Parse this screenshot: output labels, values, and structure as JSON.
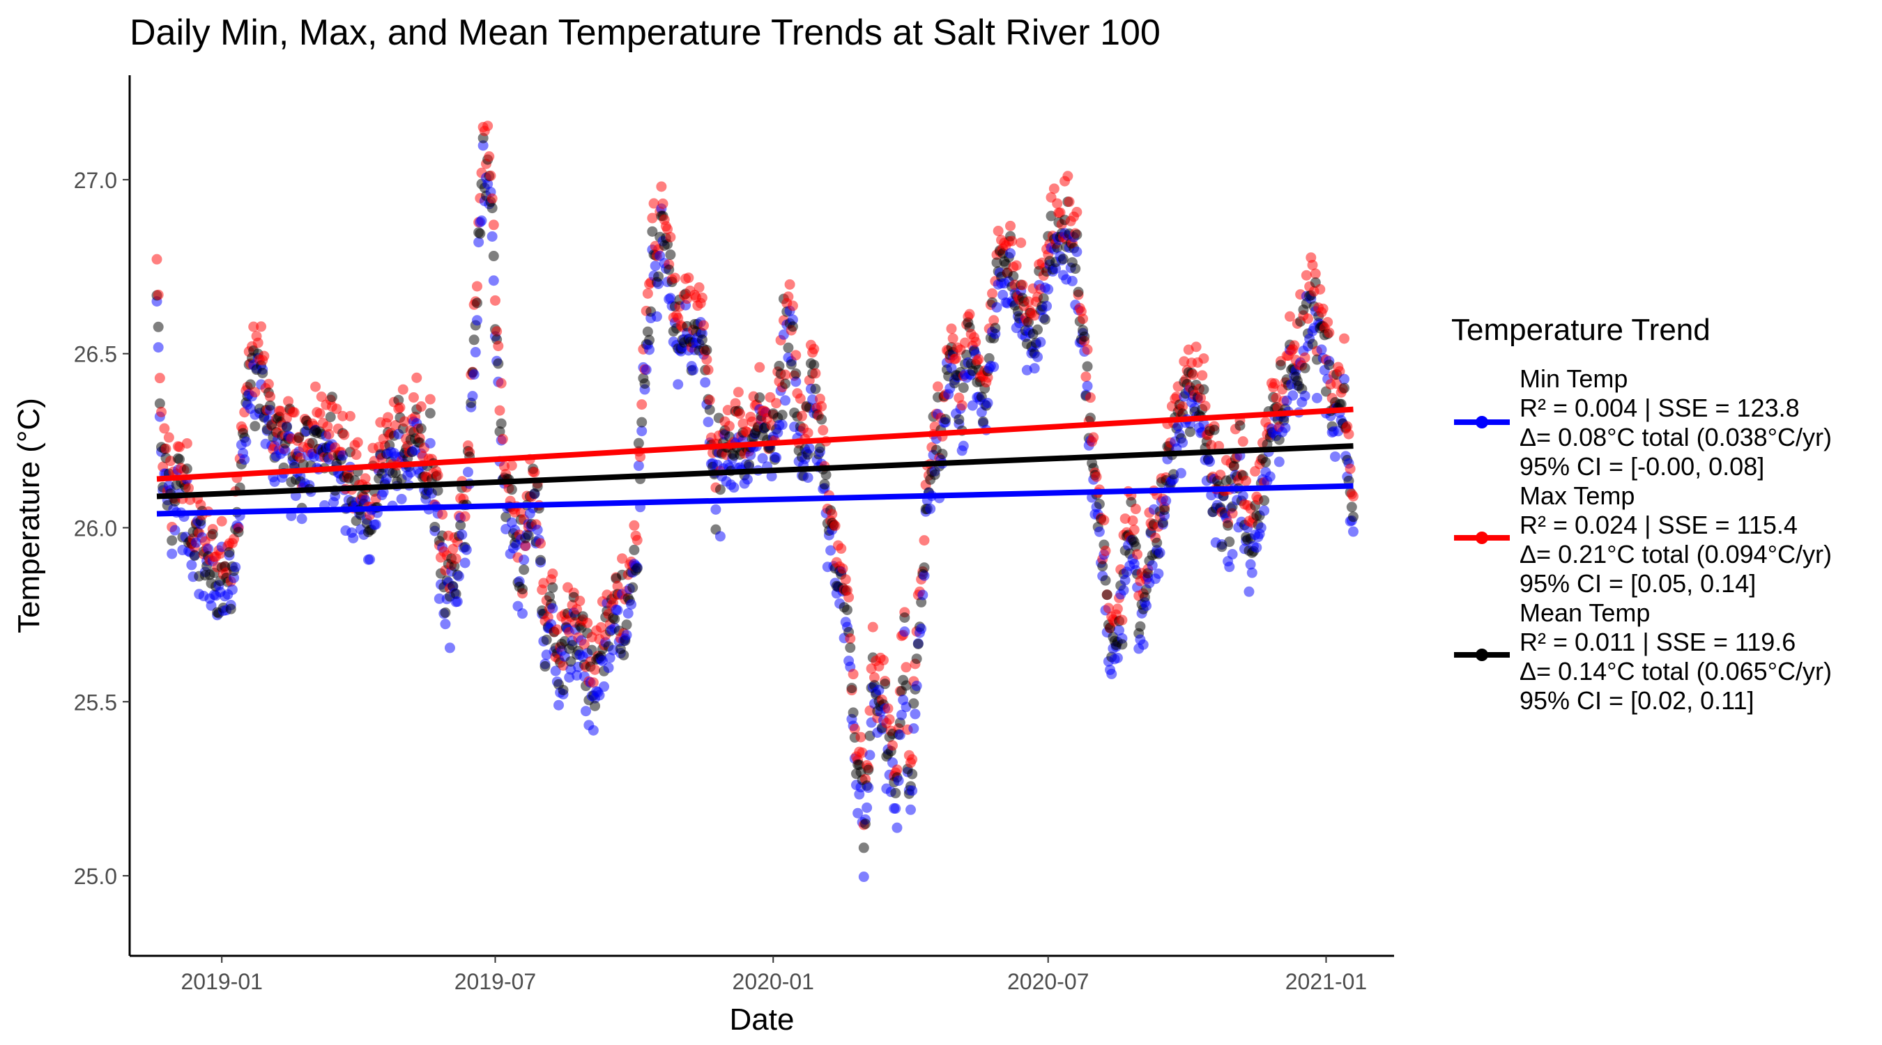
{
  "chart_data": {
    "type": "scatter",
    "title": "Daily Min, Max, and Mean Temperature Trends at Salt River 100",
    "xlabel": "Date",
    "ylabel": "Temperature (°C)",
    "x_range": [
      "2018-11-01",
      "2021-02-15"
    ],
    "ylim": [
      24.77,
      27.3
    ],
    "x_ticks": [
      {
        "date": "2019-01-01",
        "label": "2019-01"
      },
      {
        "date": "2019-07-01",
        "label": "2019-07"
      },
      {
        "date": "2020-01-01",
        "label": "2020-01"
      },
      {
        "date": "2020-07-01",
        "label": "2020-07"
      },
      {
        "date": "2021-01-01",
        "label": "2021-01"
      }
    ],
    "y_ticks": [
      "25.0",
      "25.5",
      "26.0",
      "26.5",
      "27.0"
    ],
    "grid": false,
    "legend": {
      "title": "Temperature Trend",
      "placement": "right",
      "entries": [
        {
          "name": "Min Temp",
          "color": "#0000ff",
          "lines": [
            "R² = 0.004 | SSE = 123.8",
            "Δ= 0.08°C total (0.038°C/yr)",
            "95% CI = [-0.00, 0.08]"
          ]
        },
        {
          "name": "Max Temp",
          "color": "#ff0000",
          "lines": [
            "R² = 0.024 | SSE = 115.4",
            "Δ= 0.21°C total (0.094°C/yr)",
            "95% CI = [0.05, 0.14]"
          ]
        },
        {
          "name": "Mean Temp",
          "color": "#000000",
          "lines": [
            "R² = 0.011 | SSE = 119.6",
            "Δ= 0.14°C total (0.065°C/yr)",
            "95% CI = [0.02, 0.11]"
          ]
        }
      ]
    },
    "trend_lines": [
      {
        "series": "Min Temp",
        "color": "#0000ff",
        "start": {
          "date": "2018-11-19",
          "value": 26.04
        },
        "end": {
          "date": "2021-01-19",
          "value": 26.12
        }
      },
      {
        "series": "Max Temp",
        "color": "#ff0000",
        "start": {
          "date": "2018-11-19",
          "value": 26.14
        },
        "end": {
          "date": "2021-01-19",
          "value": 26.34
        }
      },
      {
        "series": "Mean Temp",
        "color": "#000000",
        "start": {
          "date": "2018-11-19",
          "value": 26.09
        },
        "end": {
          "date": "2021-01-19",
          "value": 26.235
        }
      }
    ],
    "anchors": [
      [
        "2018-11-19",
        26.62
      ],
      [
        "2018-11-23",
        26.2
      ],
      [
        "2018-11-28",
        26.1
      ],
      [
        "2018-12-05",
        26.08
      ],
      [
        "2018-12-12",
        26.0
      ],
      [
        "2018-12-20",
        25.95
      ],
      [
        "2018-12-28",
        25.8
      ],
      [
        "2019-01-06",
        25.9
      ],
      [
        "2019-01-12",
        26.05
      ],
      [
        "2019-01-18",
        26.4
      ],
      [
        "2019-01-25",
        26.45
      ],
      [
        "2019-02-05",
        26.3
      ],
      [
        "2019-02-20",
        26.2
      ],
      [
        "2019-03-05",
        26.25
      ],
      [
        "2019-03-20",
        26.2
      ],
      [
        "2019-04-01",
        26.1
      ],
      [
        "2019-04-10",
        26.0
      ],
      [
        "2019-04-20",
        26.2
      ],
      [
        "2019-05-05",
        26.2
      ],
      [
        "2019-05-15",
        26.25
      ],
      [
        "2019-05-22",
        26.1
      ],
      [
        "2019-05-28",
        25.85
      ],
      [
        "2019-06-05",
        25.9
      ],
      [
        "2019-06-12",
        26.05
      ],
      [
        "2019-06-18",
        26.6
      ],
      [
        "2019-06-22",
        27.0
      ],
      [
        "2019-06-27",
        27.05
      ],
      [
        "2019-07-02",
        26.5
      ],
      [
        "2019-07-06",
        26.2
      ],
      [
        "2019-07-12",
        26.05
      ],
      [
        "2019-07-20",
        25.9
      ],
      [
        "2019-07-28",
        26.05
      ],
      [
        "2019-08-03",
        25.75
      ],
      [
        "2019-08-12",
        25.65
      ],
      [
        "2019-08-22",
        25.75
      ],
      [
        "2019-09-01",
        25.55
      ],
      [
        "2019-09-10",
        25.65
      ],
      [
        "2019-09-18",
        25.75
      ],
      [
        "2019-09-26",
        25.75
      ],
      [
        "2019-10-03",
        26.0
      ],
      [
        "2019-10-08",
        26.5
      ],
      [
        "2019-10-14",
        26.75
      ],
      [
        "2019-10-20",
        26.85
      ],
      [
        "2019-10-27",
        26.65
      ],
      [
        "2019-11-05",
        26.55
      ],
      [
        "2019-11-15",
        26.55
      ],
      [
        "2019-11-22",
        26.15
      ],
      [
        "2019-12-01",
        26.25
      ],
      [
        "2019-12-10",
        26.2
      ],
      [
        "2019-12-20",
        26.3
      ],
      [
        "2019-12-28",
        26.25
      ],
      [
        "2020-01-05",
        26.4
      ],
      [
        "2020-01-12",
        26.6
      ],
      [
        "2020-01-20",
        26.25
      ],
      [
        "2020-01-28",
        26.4
      ],
      [
        "2020-02-05",
        26.1
      ],
      [
        "2020-02-12",
        25.95
      ],
      [
        "2020-02-20",
        25.7
      ],
      [
        "2020-02-25",
        25.3
      ],
      [
        "2020-03-01",
        25.15
      ],
      [
        "2020-03-08",
        25.55
      ],
      [
        "2020-03-15",
        25.45
      ],
      [
        "2020-03-22",
        25.25
      ],
      [
        "2020-03-28",
        25.7
      ],
      [
        "2020-04-01",
        25.15
      ],
      [
        "2020-04-05",
        25.6
      ],
      [
        "2020-04-12",
        26.1
      ],
      [
        "2020-04-20",
        26.3
      ],
      [
        "2020-04-28",
        26.45
      ],
      [
        "2020-05-05",
        26.4
      ],
      [
        "2020-05-12",
        26.5
      ],
      [
        "2020-05-20",
        26.3
      ],
      [
        "2020-05-28",
        26.7
      ],
      [
        "2020-06-05",
        26.75
      ],
      [
        "2020-06-12",
        26.7
      ],
      [
        "2020-06-20",
        26.5
      ],
      [
        "2020-06-28",
        26.7
      ],
      [
        "2020-07-05",
        26.85
      ],
      [
        "2020-07-12",
        26.85
      ],
      [
        "2020-07-20",
        26.75
      ],
      [
        "2020-07-28",
        26.3
      ],
      [
        "2020-08-05",
        26.0
      ],
      [
        "2020-08-12",
        25.65
      ],
      [
        "2020-08-18",
        25.75
      ],
      [
        "2020-08-25",
        26.0
      ],
      [
        "2020-09-02",
        25.75
      ],
      [
        "2020-09-10",
        26.0
      ],
      [
        "2020-09-18",
        26.15
      ],
      [
        "2020-09-25",
        26.3
      ],
      [
        "2020-10-03",
        26.4
      ],
      [
        "2020-10-12",
        26.35
      ],
      [
        "2020-10-20",
        26.1
      ],
      [
        "2020-10-28",
        26.05
      ],
      [
        "2020-11-05",
        26.2
      ],
      [
        "2020-11-12",
        25.9
      ],
      [
        "2020-11-20",
        26.15
      ],
      [
        "2020-11-28",
        26.3
      ],
      [
        "2020-12-05",
        26.4
      ],
      [
        "2020-12-12",
        26.5
      ],
      [
        "2020-12-20",
        26.6
      ],
      [
        "2020-12-28",
        26.55
      ],
      [
        "2021-01-05",
        26.4
      ],
      [
        "2021-01-12",
        26.35
      ],
      [
        "2021-01-19",
        26.0
      ]
    ]
  }
}
